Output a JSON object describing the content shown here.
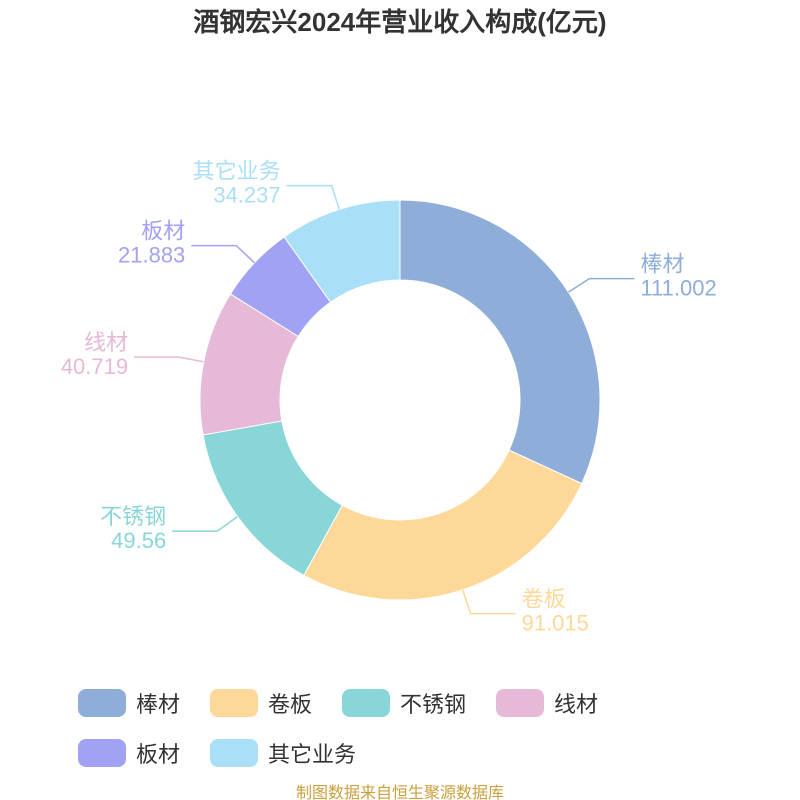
{
  "chart_data": {
    "type": "pie",
    "title": "酒钢宏兴2024年营业收入构成(亿元)",
    "categories": [
      "棒材",
      "卷板",
      "不锈钢",
      "线材",
      "板材",
      "其它业务"
    ],
    "values": [
      111.002,
      91.015,
      49.56,
      40.719,
      21.883,
      34.237
    ],
    "colors": [
      "#8eadd9",
      "#fdd899",
      "#88d6d8",
      "#e6b9d8",
      "#a2a2f4",
      "#a9dff7"
    ],
    "source": "制图数据来自恒生聚源数据库"
  }
}
